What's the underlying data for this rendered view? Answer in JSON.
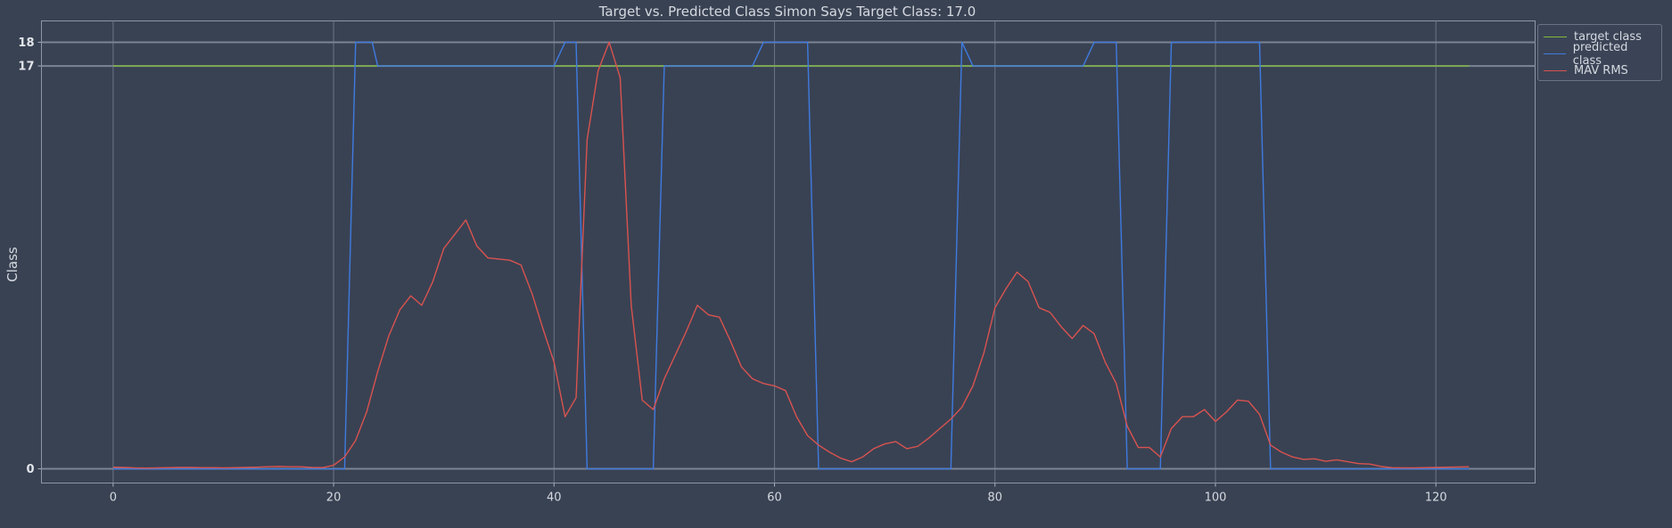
{
  "chart_data": {
    "type": "line",
    "title": "Target vs. Predicted Class Simon Says Target Class: 17.0",
    "xlabel": "",
    "ylabel": "Class",
    "xlim": [
      -6.5,
      129
    ],
    "ylim": [
      -0.6,
      18.9
    ],
    "x_ticks": [
      0,
      20,
      40,
      60,
      80,
      100,
      120
    ],
    "y_ticks": [
      0,
      17,
      18
    ],
    "grid": true,
    "legend_position": "top-right outside",
    "series": [
      {
        "name": "target class",
        "color": "#7fba3c",
        "points": [
          [
            0,
            17
          ],
          [
            123,
            17
          ]
        ]
      },
      {
        "name": "predicted class",
        "color": "#3f7be0",
        "points": [
          [
            0,
            0
          ],
          [
            21,
            0
          ],
          [
            22,
            18
          ],
          [
            23.5,
            18
          ],
          [
            24,
            17
          ],
          [
            40,
            17
          ],
          [
            41,
            18
          ],
          [
            42,
            18
          ],
          [
            43,
            0
          ],
          [
            49,
            0
          ],
          [
            50,
            17
          ],
          [
            58,
            17
          ],
          [
            59,
            18
          ],
          [
            63,
            18
          ],
          [
            64,
            0
          ],
          [
            76,
            0
          ],
          [
            77,
            18
          ],
          [
            78,
            17
          ],
          [
            88,
            17
          ],
          [
            89,
            18
          ],
          [
            91,
            18
          ],
          [
            92,
            0
          ],
          [
            95,
            0
          ],
          [
            96,
            18
          ],
          [
            104,
            18
          ],
          [
            105,
            0
          ],
          [
            123,
            0
          ]
        ]
      },
      {
        "name": "MAV RMS",
        "color": "#d9534f",
        "points": [
          [
            0,
            0.07
          ],
          [
            1,
            0.06
          ],
          [
            2,
            0.04
          ],
          [
            3,
            0.03
          ],
          [
            4,
            0.04
          ],
          [
            5,
            0.05
          ],
          [
            6,
            0.06
          ],
          [
            7,
            0.06
          ],
          [
            8,
            0.05
          ],
          [
            9,
            0.05
          ],
          [
            10,
            0.04
          ],
          [
            11,
            0.05
          ],
          [
            12,
            0.06
          ],
          [
            13,
            0.07
          ],
          [
            14,
            0.09
          ],
          [
            15,
            0.1
          ],
          [
            16,
            0.09
          ],
          [
            17,
            0.09
          ],
          [
            18,
            0.06
          ],
          [
            19,
            0.05
          ],
          [
            20,
            0.15
          ],
          [
            21,
            0.5
          ],
          [
            22,
            1.2
          ],
          [
            23,
            2.4
          ],
          [
            24,
            4.1
          ],
          [
            25,
            5.6
          ],
          [
            26,
            6.7
          ],
          [
            27,
            7.3
          ],
          [
            28,
            6.9
          ],
          [
            29,
            7.9
          ],
          [
            30,
            9.3
          ],
          [
            31,
            9.9
          ],
          [
            32,
            10.5
          ],
          [
            33,
            9.4
          ],
          [
            34,
            8.9
          ],
          [
            35,
            8.85
          ],
          [
            36,
            8.8
          ],
          [
            37,
            8.6
          ],
          [
            38,
            7.4
          ],
          [
            39,
            5.9
          ],
          [
            40,
            4.5
          ],
          [
            41,
            2.2
          ],
          [
            42,
            3.0
          ],
          [
            43,
            13.9
          ],
          [
            44,
            16.8
          ],
          [
            45,
            18.0
          ],
          [
            46,
            16.5
          ],
          [
            47,
            6.9
          ],
          [
            48,
            2.9
          ],
          [
            49,
            2.5
          ],
          [
            50,
            3.8
          ],
          [
            51,
            4.8
          ],
          [
            52,
            5.8
          ],
          [
            53,
            6.9
          ],
          [
            54,
            6.5
          ],
          [
            55,
            6.4
          ],
          [
            56,
            5.4
          ],
          [
            57,
            4.3
          ],
          [
            58,
            3.8
          ],
          [
            59,
            3.6
          ],
          [
            60,
            3.5
          ],
          [
            61,
            3.3
          ],
          [
            62,
            2.2
          ],
          [
            63,
            1.4
          ],
          [
            64,
            1.0
          ],
          [
            65,
            0.7
          ],
          [
            66,
            0.45
          ],
          [
            67,
            0.3
          ],
          [
            68,
            0.5
          ],
          [
            69,
            0.85
          ],
          [
            70,
            1.05
          ],
          [
            71,
            1.15
          ],
          [
            72,
            0.85
          ],
          [
            73,
            0.95
          ],
          [
            74,
            1.3
          ],
          [
            75,
            1.7
          ],
          [
            76,
            2.1
          ],
          [
            77,
            2.6
          ],
          [
            78,
            3.5
          ],
          [
            79,
            4.9
          ],
          [
            80,
            6.8
          ],
          [
            81,
            7.6
          ],
          [
            82,
            8.3
          ],
          [
            83,
            7.9
          ],
          [
            84,
            6.8
          ],
          [
            85,
            6.6
          ],
          [
            86,
            6.0
          ],
          [
            87,
            5.5
          ],
          [
            88,
            6.05
          ],
          [
            89,
            5.7
          ],
          [
            90,
            4.5
          ],
          [
            91,
            3.6
          ],
          [
            92,
            1.8
          ],
          [
            93,
            0.9
          ],
          [
            94,
            0.9
          ],
          [
            95,
            0.5
          ],
          [
            96,
            1.7
          ],
          [
            97,
            2.2
          ],
          [
            98,
            2.2
          ],
          [
            99,
            2.5
          ],
          [
            100,
            2.0
          ],
          [
            101,
            2.4
          ],
          [
            102,
            2.9
          ],
          [
            103,
            2.85
          ],
          [
            104,
            2.3
          ],
          [
            105,
            1.0
          ],
          [
            106,
            0.7
          ],
          [
            107,
            0.5
          ],
          [
            108,
            0.4
          ],
          [
            109,
            0.42
          ],
          [
            110,
            0.32
          ],
          [
            111,
            0.38
          ],
          [
            112,
            0.3
          ],
          [
            113,
            0.22
          ],
          [
            114,
            0.2
          ],
          [
            115,
            0.1
          ],
          [
            116,
            0.05
          ],
          [
            117,
            0.04
          ],
          [
            118,
            0.04
          ],
          [
            119,
            0.05
          ],
          [
            120,
            0.06
          ],
          [
            121,
            0.07
          ],
          [
            122,
            0.08
          ],
          [
            123,
            0.09
          ]
        ]
      }
    ]
  }
}
